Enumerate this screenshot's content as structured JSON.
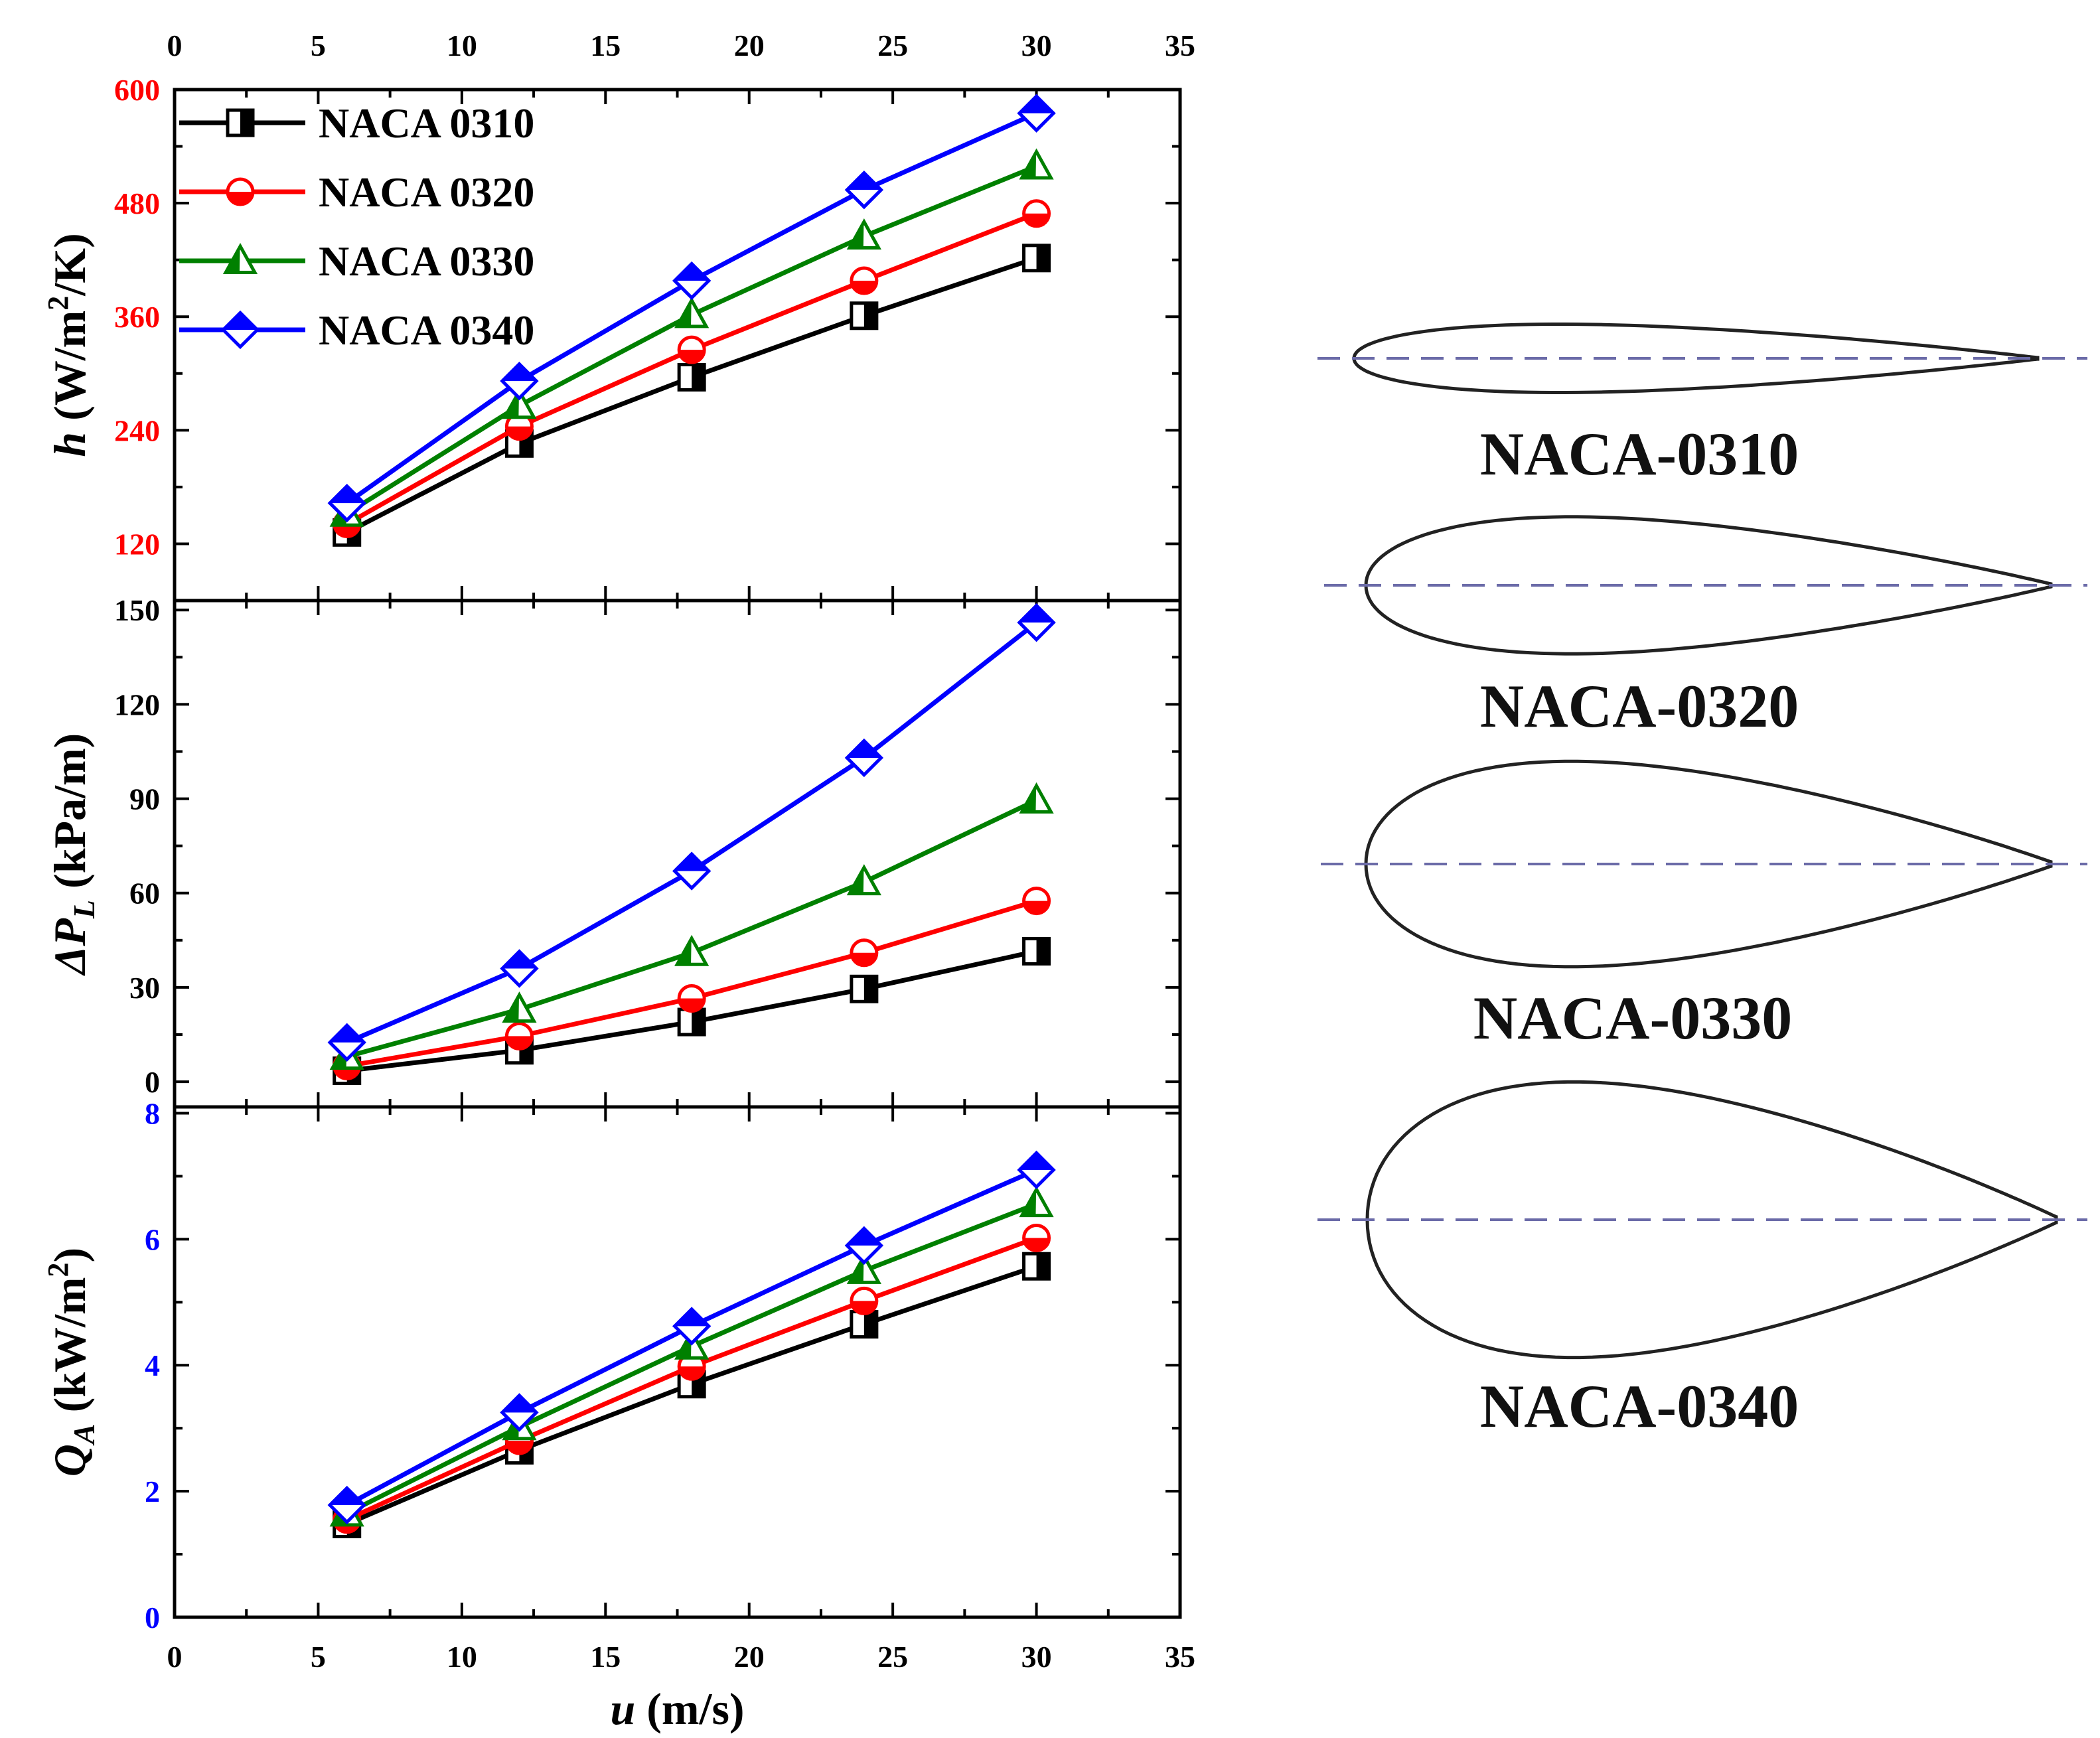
{
  "chart_data": {
    "type": "line",
    "x": [
      6,
      12,
      18,
      24,
      30
    ],
    "xlabel_var": "u",
    "xlabel_unit": " (m/s)",
    "xlim": [
      0,
      35
    ],
    "xticks": [
      "0",
      "5",
      "10",
      "15",
      "20",
      "25",
      "30",
      "35"
    ],
    "legend": {
      "placement": "top-left",
      "entries": [
        "NACA 0310",
        "NACA 0320",
        "NACA 0330",
        "NACA 0340"
      ]
    },
    "series_styles": [
      {
        "name": "NACA 0310",
        "color": "#000000",
        "marker": "square"
      },
      {
        "name": "NACA 0320",
        "color": "#ff0000",
        "marker": "circle"
      },
      {
        "name": "NACA 0330",
        "color": "#008000",
        "marker": "triangle"
      },
      {
        "name": "NACA 0340",
        "color": "#0000ff",
        "marker": "diamond"
      }
    ],
    "panels": [
      {
        "id": "h",
        "ylabel_var": "h",
        "ylabel_pre": " (W/m",
        "ylabel_sup": "2",
        "ylabel_post": "/K)",
        "tick_color": "#ff0000",
        "ylim": [
          60,
          600
        ],
        "yticks": [
          "120",
          "240",
          "360",
          "480",
          "600"
        ],
        "series": [
          {
            "name": "NACA 0310",
            "values": [
              132,
              226,
              296,
              361,
              422
            ]
          },
          {
            "name": "NACA 0320",
            "values": [
              141,
              244,
              325,
              398,
              469
            ]
          },
          {
            "name": "NACA 0330",
            "values": [
              152,
              266,
              362,
              445,
              519
            ]
          },
          {
            "name": "NACA 0340",
            "values": [
              163,
              292,
              398,
              494,
              575
            ]
          }
        ]
      },
      {
        "id": "dp",
        "ylabel_var": "ΔP",
        "ylabel_sub": "L",
        "ylabel_post": " (kPa/m)",
        "tick_color": "#000000",
        "ylim": [
          -8,
          153
        ],
        "yticks": [
          "0",
          "30",
          "60",
          "90",
          "120",
          "150"
        ],
        "series": [
          {
            "name": "NACA 0310",
            "values": [
              3.5,
              10,
              19,
              29.5,
              41.5
            ]
          },
          {
            "name": "NACA 0320",
            "values": [
              5,
              14.5,
              26.5,
              41,
              57.5
            ]
          },
          {
            "name": "NACA 0330",
            "values": [
              8,
              23,
              41,
              63.5,
              89.5
            ]
          },
          {
            "name": "NACA 0340",
            "values": [
              12.5,
              36,
              67,
              103,
              146
            ]
          }
        ]
      },
      {
        "id": "qa",
        "ylabel_var": "Q",
        "ylabel_sub": "A",
        "ylabel_pre": " (kW/m",
        "ylabel_sup": "2",
        "ylabel_post": ")",
        "tick_color": "#0000ff",
        "ylim": [
          0,
          8.1
        ],
        "yticks": [
          "0",
          "2",
          "4",
          "6",
          "8"
        ],
        "series": [
          {
            "name": "NACA 0310",
            "values": [
              1.48,
              2.65,
              3.7,
              4.65,
              5.57
            ]
          },
          {
            "name": "NACA 0320",
            "values": [
              1.55,
              2.8,
              3.98,
              5.02,
              6.02
            ]
          },
          {
            "name": "NACA 0330",
            "values": [
              1.65,
              3.02,
              4.3,
              5.5,
              6.56
            ]
          },
          {
            "name": "NACA 0340",
            "values": [
              1.78,
              3.25,
              4.62,
              5.9,
              7.1
            ]
          }
        ]
      }
    ]
  },
  "airfoils": [
    {
      "label": "NACA-0310",
      "thickness": 0.1
    },
    {
      "label": "NACA-0320",
      "thickness": 0.2
    },
    {
      "label": "NACA-0330",
      "thickness": 0.3
    },
    {
      "label": "NACA-0340",
      "thickness": 0.4
    }
  ],
  "colors": {
    "axis": "#000000",
    "centerline": "#6b6ba8"
  }
}
